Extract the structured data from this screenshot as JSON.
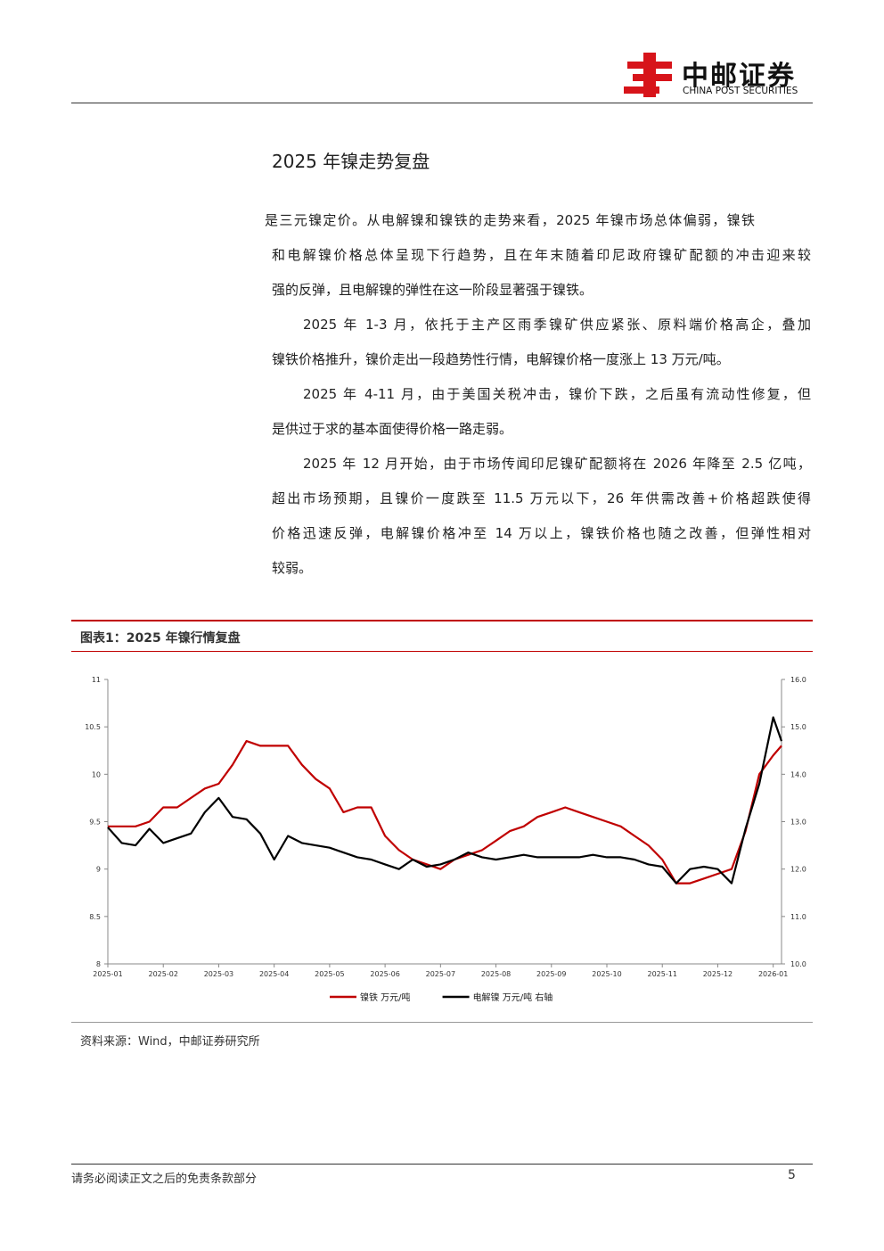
{
  "header": {
    "logo_cn": "中邮证券",
    "logo_en": "CHINA POST SECURITIES"
  },
  "section_title": "2025 年镍走势复盘",
  "paragraphs": [
    {
      "lines": [
        "是三元镍定价。从电解镍和镍铁的走势来看，2025 年镍市场总体偏弱，镍铁",
        "和电解镍价格总体呈现下行趋势，且在年末随着印尼政府镍矿配额的冲击迎来较",
        "强的反弹，且电解镍的弹性在这一阶段显著强于镍铁。"
      ]
    },
    {
      "lines": [
        "2025 年 1-3 月，依托于主产区雨季镍矿供应紧张、原料端价格高企，叠加",
        "镍铁价格推升，镍价走出一段趋势性行情，电解镍价格一度涨上 13 万元/吨。"
      ]
    },
    {
      "lines": [
        "2025 年 4-11 月，由于美国关税冲击，镍价下跌，之后虽有流动性修复，但",
        "是供过于求的基本面使得价格一路走弱。"
      ]
    },
    {
      "lines": [
        "2025 年 12 月开始，由于市场传闻印尼镍矿配额将在 2026 年降至 2.5 亿吨，",
        "超出市场预期，且镍价一度跌至 11.5 万元以下，26 年供需改善+价格超跌使得",
        "价格迅速反弹，电解镍价格冲至 14 万以上，镍铁价格也随之改善，但弹性相对",
        "较弱。"
      ]
    }
  ],
  "figure": {
    "caption": "图表1：2025 年镍行情复盘",
    "source": "资料来源：Wind，中邮证券研究所"
  },
  "chart_data": {
    "type": "line",
    "x": [
      0,
      0.25,
      0.5,
      0.75,
      1,
      1.25,
      1.5,
      1.75,
      2,
      2.25,
      2.5,
      2.75,
      3,
      3.25,
      3.5,
      3.75,
      4,
      4.25,
      4.5,
      4.75,
      5,
      5.25,
      5.5,
      5.75,
      6,
      6.25,
      6.5,
      6.75,
      7,
      7.25,
      7.5,
      7.75,
      8,
      8.25,
      8.5,
      8.75,
      9,
      9.25,
      9.5,
      9.75,
      10,
      10.25,
      10.5,
      10.75,
      11,
      11.25,
      11.5,
      11.75,
      12,
      12.15
    ],
    "xlim": [
      0,
      12.15
    ],
    "xticks": [
      {
        "value": 0,
        "label": "2025-01"
      },
      {
        "value": 1,
        "label": "2025-02"
      },
      {
        "value": 2,
        "label": "2025-03"
      },
      {
        "value": 3,
        "label": "2025-04"
      },
      {
        "value": 4,
        "label": "2025-05"
      },
      {
        "value": 5,
        "label": "2025-06"
      },
      {
        "value": 6,
        "label": "2025-07"
      },
      {
        "value": 7,
        "label": "2025-08"
      },
      {
        "value": 8,
        "label": "2025-09"
      },
      {
        "value": 9,
        "label": "2025-10"
      },
      {
        "value": 10,
        "label": "2025-11"
      },
      {
        "value": 11,
        "label": "2025-12"
      },
      {
        "value": 12,
        "label": "2026-01"
      }
    ],
    "ylim": [
      8,
      11
    ],
    "yticks": [
      8,
      8.5,
      9,
      9.5,
      10,
      10.5,
      11
    ],
    "y2lim": [
      10,
      16
    ],
    "y2ticks": [
      {
        "value": 10,
        "label": "10.0"
      },
      {
        "value": 11,
        "label": "11.0"
      },
      {
        "value": 12,
        "label": "12.0"
      },
      {
        "value": 13,
        "label": "13.0"
      },
      {
        "value": 14,
        "label": "14.0"
      },
      {
        "value": 15,
        "label": "15.0"
      },
      {
        "value": 16,
        "label": "16.0"
      }
    ],
    "series": [
      {
        "name": "镍铁  万元/吨",
        "color": "#c00000",
        "values": [
          9.45,
          9.45,
          9.45,
          9.5,
          9.65,
          9.65,
          9.75,
          9.85,
          9.9,
          10.1,
          10.35,
          10.3,
          10.3,
          10.3,
          10.1,
          9.95,
          9.85,
          9.6,
          9.65,
          9.65,
          9.35,
          9.2,
          9.1,
          9.05,
          9.0,
          9.1,
          9.15,
          9.2,
          9.3,
          9.4,
          9.45,
          9.55,
          9.6,
          9.65,
          9.6,
          9.55,
          9.5,
          9.45,
          9.35,
          9.25,
          9.1,
          8.85,
          8.85,
          8.9,
          8.95,
          9.0,
          9.4,
          10.0,
          10.2,
          10.3
        ]
      },
      {
        "name": "电解镍  万元/吨  右轴",
        "color": "#000000",
        "axis": "y2",
        "values": [
          12.88,
          12.55,
          12.5,
          12.85,
          12.55,
          12.65,
          12.75,
          13.2,
          13.5,
          13.1,
          13.05,
          12.75,
          12.2,
          12.7,
          12.55,
          12.5,
          12.45,
          12.35,
          12.25,
          12.2,
          12.1,
          12.0,
          12.2,
          12.05,
          12.1,
          12.2,
          12.35,
          12.25,
          12.2,
          12.25,
          12.3,
          12.25,
          12.25,
          12.25,
          12.25,
          12.3,
          12.25,
          12.25,
          12.2,
          12.1,
          12.05,
          11.7,
          12.0,
          12.05,
          12.0,
          11.7,
          12.85,
          13.8,
          15.2,
          14.7
        ]
      }
    ]
  },
  "footer": {
    "disclaimer": "请务必阅读正文之后的免责条款部分",
    "page": "5"
  }
}
